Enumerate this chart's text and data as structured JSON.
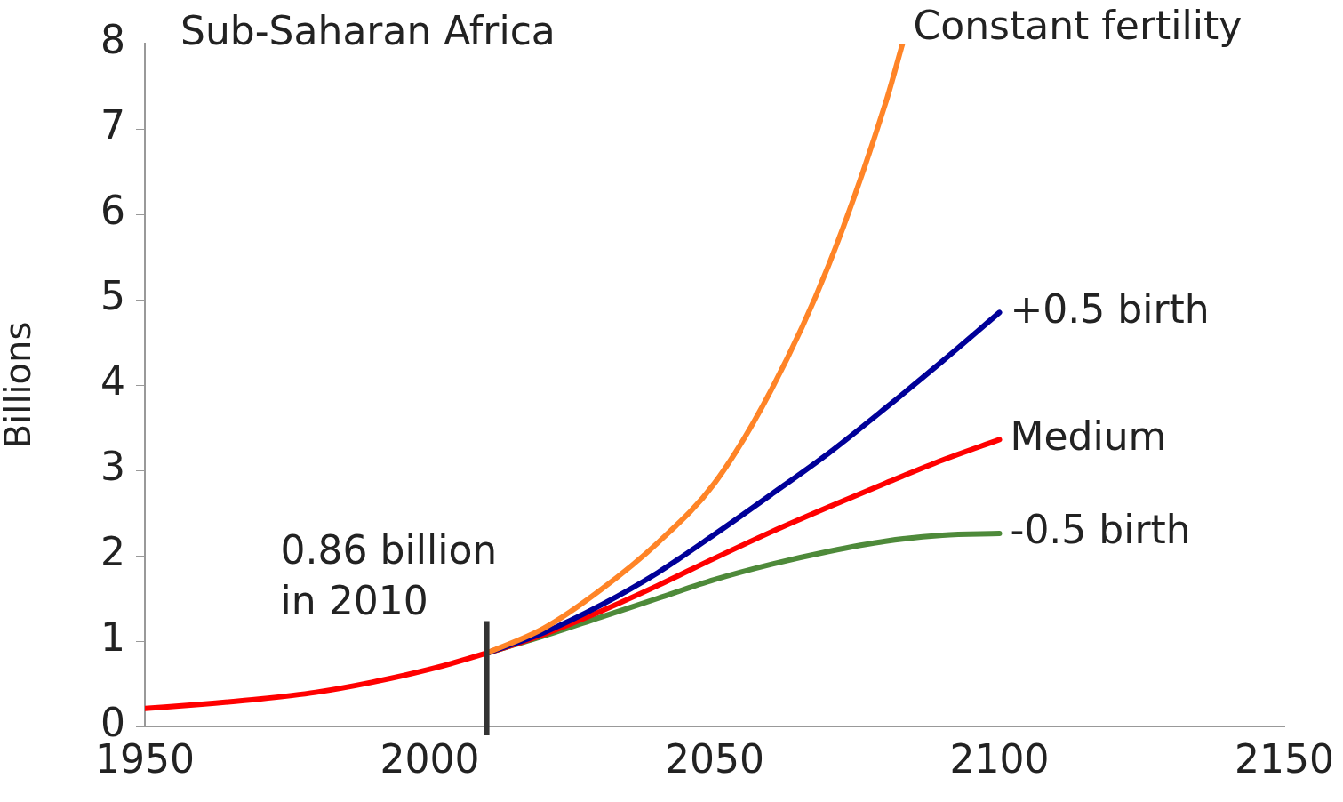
{
  "chart_data": {
    "type": "line",
    "title": "Sub-Saharan Africa",
    "ylabel": "Billions",
    "xlim": [
      1950,
      2150
    ],
    "xticks": [
      1950,
      2000,
      2050,
      2100,
      2150
    ],
    "ylim": [
      0,
      8
    ],
    "yticks": [
      0,
      1,
      2,
      3,
      4,
      5,
      6,
      7,
      8
    ],
    "grid": false,
    "legend": false,
    "marker": "none",
    "line_style": "solid",
    "annotations": [
      {
        "text": "0.86 billion\nin 2010",
        "x": 2010,
        "y": 0.86
      }
    ],
    "series": [
      {
        "name": "Constant fertility",
        "color": "#ff8427",
        "x": [
          2010,
          2020,
          2030,
          2040,
          2050,
          2060,
          2070,
          2080,
          2083
        ],
        "values": [
          0.86,
          1.15,
          1.6,
          2.15,
          2.85,
          3.95,
          5.4,
          7.3,
          8.0
        ]
      },
      {
        "name": "+0.5 birth",
        "color": "#000099",
        "x": [
          2010,
          2020,
          2030,
          2040,
          2050,
          2060,
          2070,
          2080,
          2090,
          2100
        ],
        "values": [
          0.86,
          1.1,
          1.42,
          1.8,
          2.25,
          2.72,
          3.2,
          3.73,
          4.28,
          4.85
        ]
      },
      {
        "name": "Medium",
        "color": "#ff0000",
        "x": [
          1950,
          1960,
          1970,
          1980,
          1990,
          2000,
          2010,
          2020,
          2030,
          2040,
          2050,
          2060,
          2070,
          2080,
          2090,
          2100
        ],
        "values": [
          0.21,
          0.26,
          0.32,
          0.4,
          0.52,
          0.67,
          0.86,
          1.08,
          1.35,
          1.65,
          1.97,
          2.28,
          2.57,
          2.85,
          3.12,
          3.36
        ]
      },
      {
        "name": "-0.5 birth",
        "color": "#4e8a3a",
        "x": [
          2010,
          2020,
          2030,
          2040,
          2050,
          2060,
          2070,
          2080,
          2090,
          2100
        ],
        "values": [
          0.86,
          1.06,
          1.28,
          1.5,
          1.72,
          1.9,
          2.05,
          2.17,
          2.24,
          2.26
        ]
      }
    ]
  }
}
